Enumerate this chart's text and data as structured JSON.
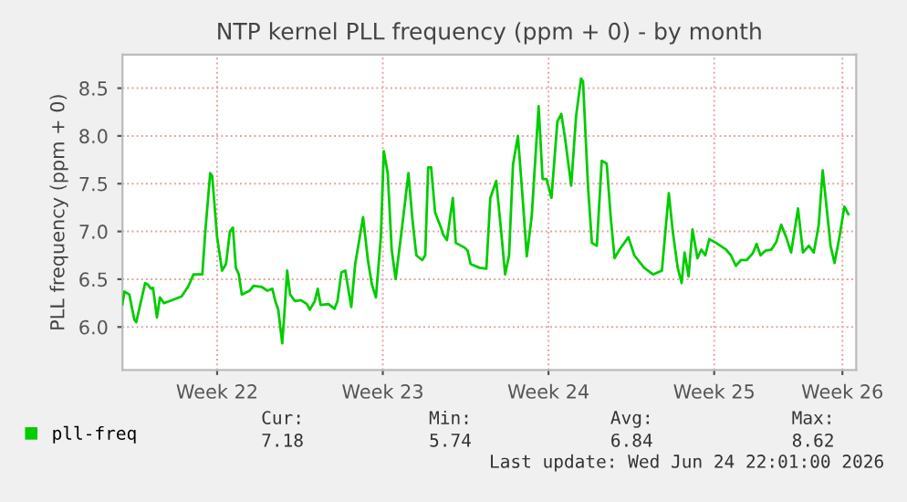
{
  "chart_data": {
    "type": "line",
    "title": "NTP kernel PLL frequency (ppm + 0) - by month",
    "ylabel": "PLL frequency (ppm + 0)",
    "xlim": [
      "2026-05-24T22:00",
      "2026-06-24T22:00"
    ],
    "xticks": [
      {
        "value": "2026-05-28T22:00",
        "label": "Week 22"
      },
      {
        "value": "2026-06-04T22:00",
        "label": "Week 23"
      },
      {
        "value": "2026-06-11T22:00",
        "label": "Week 24"
      },
      {
        "value": "2026-06-18T22:00",
        "label": "Week 25"
      },
      {
        "value": "2026-06-24T08:00",
        "label": "Week 26"
      }
    ],
    "ylim": [
      5.55,
      8.85
    ],
    "yticks": [
      {
        "value": 6.0,
        "label": "6.0"
      },
      6.5,
      {
        "value": 7.0,
        "label": "7.0"
      },
      7.5,
      {
        "value": 8.0,
        "label": "8.0"
      },
      8.5
    ],
    "grid": true,
    "legend": "bottom left",
    "marker": "none",
    "line_style": "solid",
    "annotations": [
      "Cur:",
      "Min:",
      "Avg:",
      "Max:",
      "7.18",
      "5.74",
      "6.84",
      "8.62",
      "Last update: Wed Jun 24 22:01:00 2026"
    ],
    "series": [
      {
        "name": "pll-freq",
        "color": "#00cc00",
        "x": [
          "2026-05-24T22:00",
          "2026-05-25T00:00",
          "2026-05-25T05:00",
          "2026-05-25T10:00",
          "2026-05-25T12:00",
          "2026-05-25T21:00",
          "2026-05-26T00:00",
          "2026-05-26T03:00",
          "2026-05-26T05:00",
          "2026-05-26T09:00",
          "2026-05-26T12:00",
          "2026-05-26T16:00",
          "2026-05-27T00:00",
          "2026-05-27T10:00",
          "2026-05-27T17:00",
          "2026-05-27T22:00",
          "2026-05-28T07:00",
          "2026-05-28T10:00",
          "2026-05-28T15:00",
          "2026-05-28T17:00",
          "2026-05-28T22:00",
          "2026-05-29T03:00",
          "2026-05-29T07:00",
          "2026-05-29T11:00",
          "2026-05-29T14:00",
          "2026-05-29T17:00",
          "2026-05-29T20:00",
          "2026-05-29T23:00",
          "2026-05-30T07:00",
          "2026-05-30T11:00",
          "2026-05-30T19:00",
          "2026-05-31T01:00",
          "2026-05-31T06:00",
          "2026-05-31T09:00",
          "2026-05-31T12:00",
          "2026-05-31T16:00",
          "2026-05-31T18:00",
          "2026-05-31T21:00",
          "2026-06-01T00:00",
          "2026-06-01T05:00",
          "2026-06-01T11:00",
          "2026-06-01T17:00",
          "2026-06-01T20:00",
          "2026-06-02T01:00",
          "2026-06-02T04:00",
          "2026-06-02T07:00",
          "2026-06-02T15:00",
          "2026-06-02T21:00",
          "2026-06-03T00:00",
          "2026-06-03T04:00",
          "2026-06-03T08:00",
          "2026-06-03T10:00",
          "2026-06-03T14:00",
          "2026-06-03T18:00",
          "2026-06-04T02:00",
          "2026-06-04T07:00",
          "2026-06-04T11:00",
          "2026-06-04T15:00",
          "2026-06-04T20:00",
          "2026-06-04T23:00",
          "2026-06-05T03:00",
          "2026-06-05T07:00",
          "2026-06-05T11:00",
          "2026-06-05T17:00",
          "2026-06-06T00:00",
          "2026-06-06T04:00",
          "2026-06-06T08:00",
          "2026-06-06T14:00",
          "2026-06-06T17:00",
          "2026-06-06T20:00",
          "2026-06-06T23:00",
          "2026-06-07T03:00",
          "2026-06-07T09:00",
          "2026-06-07T11:00",
          "2026-06-07T15:00",
          "2026-06-07T21:00",
          "2026-06-08T00:00",
          "2026-06-08T09:00",
          "2026-06-08T12:00",
          "2026-06-08T15:00",
          "2026-06-09T00:00",
          "2026-06-09T07:00",
          "2026-06-09T11:00",
          "2026-06-09T17:00",
          "2026-06-09T22:00",
          "2026-06-10T02:00",
          "2026-06-10T06:00",
          "2026-06-10T10:00",
          "2026-06-10T15:00",
          "2026-06-10T20:00",
          "2026-06-11T00:00",
          "2026-06-11T05:00",
          "2026-06-11T12:00",
          "2026-06-11T16:00",
          "2026-06-11T20:00",
          "2026-06-12T01:00",
          "2026-06-12T07:00",
          "2026-06-12T11:00",
          "2026-06-12T15:00",
          "2026-06-12T21:00",
          "2026-06-13T02:00",
          "2026-06-13T07:00",
          "2026-06-13T09:00",
          "2026-06-13T14:00",
          "2026-06-13T18:00",
          "2026-06-13T23:00",
          "2026-06-14T04:00",
          "2026-06-14T09:00",
          "2026-06-14T13:00",
          "2026-06-14T17:00",
          "2026-06-14T22:00",
          "2026-06-15T07:00",
          "2026-06-15T13:00",
          "2026-06-15T23:00",
          "2026-06-16T08:00",
          "2026-06-16T17:00",
          "2026-06-16T20:00",
          "2026-06-17T00:00",
          "2026-06-17T04:00",
          "2026-06-17T09:00",
          "2026-06-17T13:00",
          "2026-06-17T16:00",
          "2026-06-17T20:00",
          "2026-06-18T00:00",
          "2026-06-18T05:00",
          "2026-06-18T09:00",
          "2026-06-18T13:00",
          "2026-06-18T17:00",
          "2026-06-19T00:00",
          "2026-06-19T10:00",
          "2026-06-19T15:00",
          "2026-06-19T20:00",
          "2026-06-20T01:00",
          "2026-06-20T07:00",
          "2026-06-20T13:00",
          "2026-06-20T17:00",
          "2026-06-20T21:00",
          "2026-06-21T02:00",
          "2026-06-21T08:00",
          "2026-06-21T13:00",
          "2026-06-21T18:00",
          "2026-06-21T23:00",
          "2026-06-22T04:00",
          "2026-06-22T11:00",
          "2026-06-22T16:00",
          "2026-06-22T22:00",
          "2026-06-23T03:00",
          "2026-06-23T08:00",
          "2026-06-23T12:00",
          "2026-06-23T15:00",
          "2026-06-23T20:00",
          "2026-06-24T00:00",
          "2026-06-24T05:00",
          "2026-06-24T10:00",
          "2026-06-24T14:00"
        ],
        "values": [
          6.24,
          6.37,
          6.34,
          6.08,
          6.05,
          6.46,
          6.44,
          6.4,
          6.41,
          6.1,
          6.31,
          6.25,
          6.28,
          6.32,
          6.43,
          6.55,
          6.55,
          7.0,
          7.61,
          7.58,
          6.94,
          6.59,
          6.66,
          7.0,
          7.04,
          6.62,
          6.55,
          6.34,
          6.38,
          6.43,
          6.42,
          6.38,
          6.4,
          6.27,
          6.18,
          5.83,
          6.11,
          6.59,
          6.34,
          6.27,
          6.28,
          6.24,
          6.18,
          6.27,
          6.4,
          6.23,
          6.24,
          6.19,
          6.27,
          6.57,
          6.59,
          6.46,
          6.21,
          6.66,
          7.15,
          6.69,
          6.44,
          6.31,
          6.94,
          7.84,
          7.61,
          6.81,
          6.5,
          7.0,
          7.61,
          7.13,
          6.75,
          6.7,
          6.75,
          7.67,
          7.67,
          7.2,
          7.04,
          6.97,
          6.91,
          7.35,
          6.88,
          6.83,
          6.8,
          6.66,
          6.62,
          6.61,
          7.35,
          7.53,
          7.0,
          6.55,
          6.75,
          7.7,
          8.0,
          7.32,
          6.74,
          7.16,
          8.31,
          7.55,
          7.55,
          7.35,
          8.15,
          8.23,
          7.96,
          7.48,
          8.21,
          8.6,
          8.57,
          7.48,
          6.88,
          6.85,
          7.74,
          7.71,
          7.16,
          6.72,
          6.81,
          6.94,
          6.75,
          6.62,
          6.55,
          6.59,
          6.94,
          7.4,
          7.0,
          6.62,
          6.46,
          6.78,
          6.53,
          7.02,
          6.72,
          6.81,
          6.75,
          6.92,
          6.88,
          6.81,
          6.75,
          6.64,
          6.7,
          6.7,
          6.77,
          6.87,
          6.75,
          6.8,
          6.81,
          6.89,
          7.07,
          6.94,
          6.78,
          7.24,
          6.78,
          6.85,
          6.78,
          7.07,
          7.64,
          7.35,
          6.85,
          6.67,
          6.94,
          7.26,
          7.18
        ]
      }
    ]
  }
}
